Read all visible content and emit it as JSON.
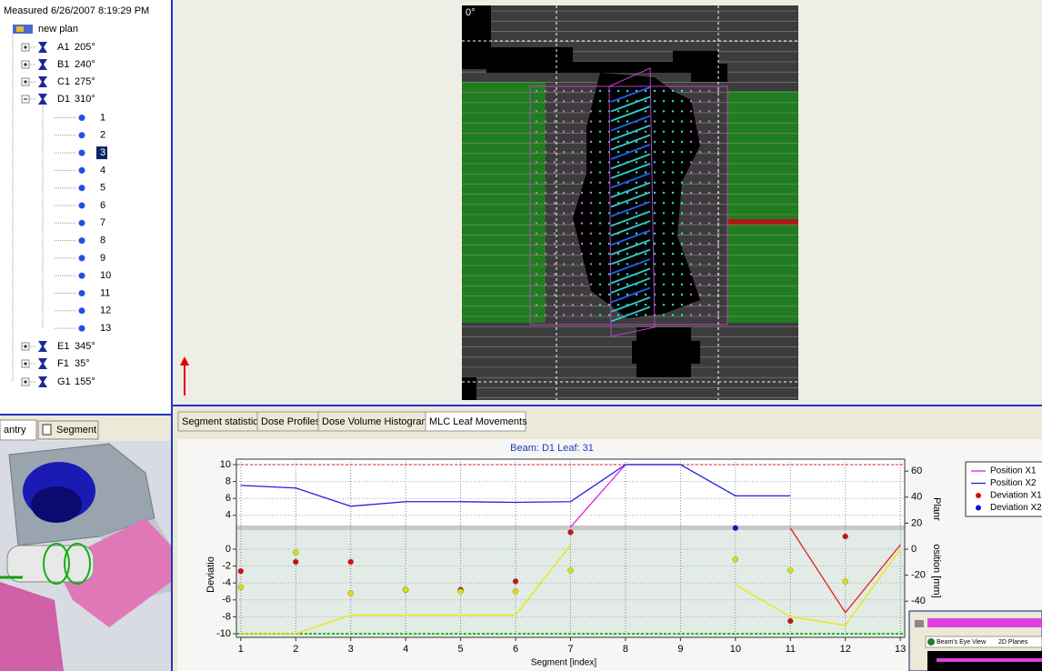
{
  "tree": {
    "measured": "Measured  6/26/2007 8:19:29 PM",
    "plan": "new plan",
    "beams": [
      {
        "name": "A1",
        "angle": "205°"
      },
      {
        "name": "B1",
        "angle": "240°"
      },
      {
        "name": "C1",
        "angle": "275°"
      },
      {
        "name": "D1",
        "angle": "310°"
      },
      {
        "name": "E1",
        "angle": "345°"
      },
      {
        "name": "F1",
        "angle": "35°"
      },
      {
        "name": "G1",
        "angle": "155°"
      }
    ],
    "segments": [
      "1",
      "2",
      "3",
      "4",
      "5",
      "6",
      "7",
      "8",
      "9",
      "10",
      "11",
      "12",
      "13"
    ]
  },
  "left_tabs": [
    "antry",
    "Segment"
  ],
  "view": {
    "angle_label": "0°"
  },
  "tabs": [
    "Segment statistics",
    "Dose Profiles",
    "Dose Volume Histograms",
    "MLC Leaf Movements"
  ],
  "mlc_chart": {
    "type": "line",
    "title": "Beam: D1   Leaf: 31",
    "x_label": "Segment [index]",
    "y_label": "Deviatio",
    "y2_label_top": "Planr",
    "y2_label": "osition [mm]",
    "x": [
      1,
      2,
      3,
      4,
      5,
      6,
      7,
      8,
      9,
      10,
      11,
      12,
      13
    ],
    "xlim": [
      0.92,
      13.08
    ],
    "xticks": [
      1,
      2,
      3,
      4,
      5,
      6,
      7,
      8,
      9,
      10,
      11,
      12,
      13
    ],
    "ylim": [
      -10,
      10
    ],
    "yticks": [
      10,
      8,
      6,
      4,
      0,
      -2,
      -4,
      -6,
      -8,
      -10
    ],
    "y2lim": [
      -65,
      65
    ],
    "y2ticks": [
      60,
      40,
      20,
      0,
      -20,
      -40
    ],
    "series": [
      {
        "name": "Position X1",
        "color": "#e020e0",
        "style": "line",
        "axis": "y2",
        "values": [
          null,
          null,
          null,
          null,
          null,
          null,
          17,
          65,
          65,
          null,
          null,
          null,
          null
        ]
      },
      {
        "name": "Position X2",
        "color": "#2020e0",
        "style": "line",
        "axis": "y2",
        "values": [
          49,
          47,
          33,
          36.5,
          36.5,
          36,
          36.5,
          65,
          65,
          41,
          41,
          null,
          null
        ]
      },
      {
        "name": "Deviation X1",
        "color": "#d01010",
        "style": "dots",
        "values": [
          -2.6,
          -1.5,
          -1.5,
          -4.8,
          -4.8,
          -3.8,
          2,
          null,
          null,
          null,
          -8.5,
          1.5,
          null
        ]
      },
      {
        "name": "Deviation X2",
        "color": "#1010d0",
        "style": "dots",
        "values": [
          null,
          null,
          null,
          null,
          null,
          null,
          null,
          null,
          null,
          2.5,
          null,
          null,
          null
        ]
      },
      {
        "color": "#e8e800",
        "style": "line",
        "values": [
          -10,
          -10,
          -7.8,
          -7.8,
          -7.8,
          -7.8,
          0.5,
          null,
          null,
          -4.2,
          -8,
          -9,
          0
        ]
      },
      {
        "color": "#e02020",
        "style": "line",
        "values": [
          null,
          null,
          null,
          null,
          null,
          null,
          null,
          null,
          null,
          null,
          2.5,
          -7.5,
          0.5
        ]
      },
      {
        "color": "#e0e000",
        "style": "dots",
        "values": [
          -4.5,
          -0.4,
          -5.2,
          -4.8,
          -5,
          -5,
          -2.5,
          null,
          null,
          -1.2,
          -2.5,
          -3.8,
          null
        ]
      }
    ]
  },
  "thumbnail": {
    "tabs": [
      "Beam's Eye View",
      "2D Planes"
    ]
  }
}
